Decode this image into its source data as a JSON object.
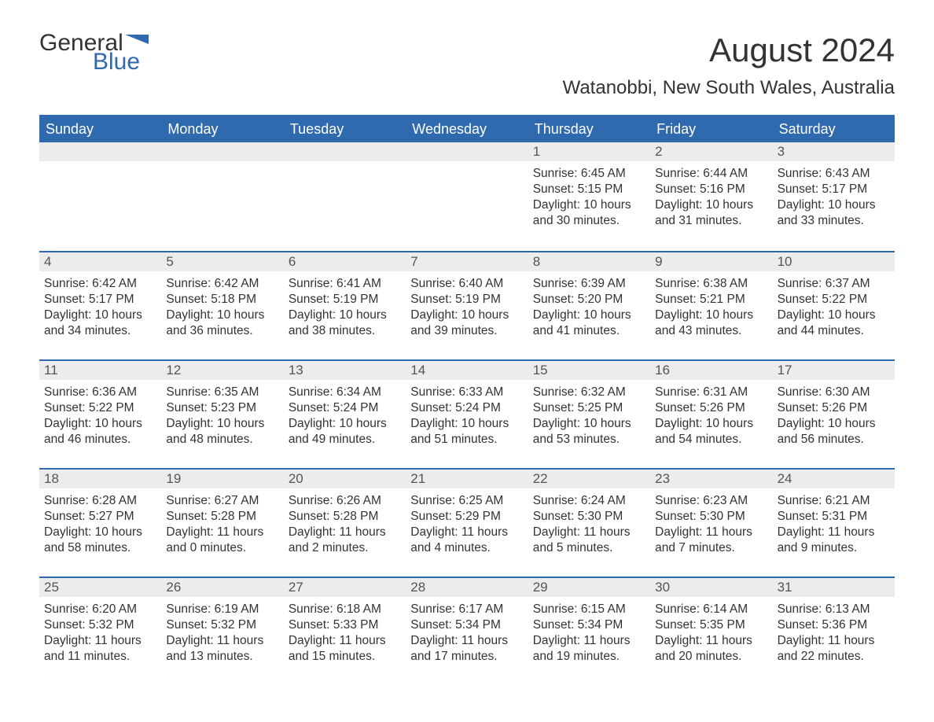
{
  "brand": {
    "part1": "General",
    "part2": "Blue",
    "color_primary": "#2f6aaf"
  },
  "title": "August 2024",
  "location": "Watanobbi, New South Wales, Australia",
  "weekdays": [
    "Sunday",
    "Monday",
    "Tuesday",
    "Wednesday",
    "Thursday",
    "Friday",
    "Saturday"
  ],
  "styling": {
    "header_bg": "#2f6aaf",
    "header_text": "#ffffff",
    "daynum_bg": "#ececec",
    "text_color": "#333333",
    "border_color": "#2f6aaf",
    "body_fontsize": 15.5,
    "header_fontsize": 18,
    "title_fontsize": 42,
    "location_fontsize": 24
  },
  "weeks": [
    [
      {
        "day": "",
        "lines": []
      },
      {
        "day": "",
        "lines": []
      },
      {
        "day": "",
        "lines": []
      },
      {
        "day": "",
        "lines": []
      },
      {
        "day": "1",
        "lines": [
          "Sunrise: 6:45 AM",
          "Sunset: 5:15 PM",
          "Daylight: 10 hours",
          "and 30 minutes."
        ]
      },
      {
        "day": "2",
        "lines": [
          "Sunrise: 6:44 AM",
          "Sunset: 5:16 PM",
          "Daylight: 10 hours",
          "and 31 minutes."
        ]
      },
      {
        "day": "3",
        "lines": [
          "Sunrise: 6:43 AM",
          "Sunset: 5:17 PM",
          "Daylight: 10 hours",
          "and 33 minutes."
        ]
      }
    ],
    [
      {
        "day": "4",
        "lines": [
          "Sunrise: 6:42 AM",
          "Sunset: 5:17 PM",
          "Daylight: 10 hours",
          "and 34 minutes."
        ]
      },
      {
        "day": "5",
        "lines": [
          "Sunrise: 6:42 AM",
          "Sunset: 5:18 PM",
          "Daylight: 10 hours",
          "and 36 minutes."
        ]
      },
      {
        "day": "6",
        "lines": [
          "Sunrise: 6:41 AM",
          "Sunset: 5:19 PM",
          "Daylight: 10 hours",
          "and 38 minutes."
        ]
      },
      {
        "day": "7",
        "lines": [
          "Sunrise: 6:40 AM",
          "Sunset: 5:19 PM",
          "Daylight: 10 hours",
          "and 39 minutes."
        ]
      },
      {
        "day": "8",
        "lines": [
          "Sunrise: 6:39 AM",
          "Sunset: 5:20 PM",
          "Daylight: 10 hours",
          "and 41 minutes."
        ]
      },
      {
        "day": "9",
        "lines": [
          "Sunrise: 6:38 AM",
          "Sunset: 5:21 PM",
          "Daylight: 10 hours",
          "and 43 minutes."
        ]
      },
      {
        "day": "10",
        "lines": [
          "Sunrise: 6:37 AM",
          "Sunset: 5:22 PM",
          "Daylight: 10 hours",
          "and 44 minutes."
        ]
      }
    ],
    [
      {
        "day": "11",
        "lines": [
          "Sunrise: 6:36 AM",
          "Sunset: 5:22 PM",
          "Daylight: 10 hours",
          "and 46 minutes."
        ]
      },
      {
        "day": "12",
        "lines": [
          "Sunrise: 6:35 AM",
          "Sunset: 5:23 PM",
          "Daylight: 10 hours",
          "and 48 minutes."
        ]
      },
      {
        "day": "13",
        "lines": [
          "Sunrise: 6:34 AM",
          "Sunset: 5:24 PM",
          "Daylight: 10 hours",
          "and 49 minutes."
        ]
      },
      {
        "day": "14",
        "lines": [
          "Sunrise: 6:33 AM",
          "Sunset: 5:24 PM",
          "Daylight: 10 hours",
          "and 51 minutes."
        ]
      },
      {
        "day": "15",
        "lines": [
          "Sunrise: 6:32 AM",
          "Sunset: 5:25 PM",
          "Daylight: 10 hours",
          "and 53 minutes."
        ]
      },
      {
        "day": "16",
        "lines": [
          "Sunrise: 6:31 AM",
          "Sunset: 5:26 PM",
          "Daylight: 10 hours",
          "and 54 minutes."
        ]
      },
      {
        "day": "17",
        "lines": [
          "Sunrise: 6:30 AM",
          "Sunset: 5:26 PM",
          "Daylight: 10 hours",
          "and 56 minutes."
        ]
      }
    ],
    [
      {
        "day": "18",
        "lines": [
          "Sunrise: 6:28 AM",
          "Sunset: 5:27 PM",
          "Daylight: 10 hours",
          "and 58 minutes."
        ]
      },
      {
        "day": "19",
        "lines": [
          "Sunrise: 6:27 AM",
          "Sunset: 5:28 PM",
          "Daylight: 11 hours",
          "and 0 minutes."
        ]
      },
      {
        "day": "20",
        "lines": [
          "Sunrise: 6:26 AM",
          "Sunset: 5:28 PM",
          "Daylight: 11 hours",
          "and 2 minutes."
        ]
      },
      {
        "day": "21",
        "lines": [
          "Sunrise: 6:25 AM",
          "Sunset: 5:29 PM",
          "Daylight: 11 hours",
          "and 4 minutes."
        ]
      },
      {
        "day": "22",
        "lines": [
          "Sunrise: 6:24 AM",
          "Sunset: 5:30 PM",
          "Daylight: 11 hours",
          "and 5 minutes."
        ]
      },
      {
        "day": "23",
        "lines": [
          "Sunrise: 6:23 AM",
          "Sunset: 5:30 PM",
          "Daylight: 11 hours",
          "and 7 minutes."
        ]
      },
      {
        "day": "24",
        "lines": [
          "Sunrise: 6:21 AM",
          "Sunset: 5:31 PM",
          "Daylight: 11 hours",
          "and 9 minutes."
        ]
      }
    ],
    [
      {
        "day": "25",
        "lines": [
          "Sunrise: 6:20 AM",
          "Sunset: 5:32 PM",
          "Daylight: 11 hours",
          "and 11 minutes."
        ]
      },
      {
        "day": "26",
        "lines": [
          "Sunrise: 6:19 AM",
          "Sunset: 5:32 PM",
          "Daylight: 11 hours",
          "and 13 minutes."
        ]
      },
      {
        "day": "27",
        "lines": [
          "Sunrise: 6:18 AM",
          "Sunset: 5:33 PM",
          "Daylight: 11 hours",
          "and 15 minutes."
        ]
      },
      {
        "day": "28",
        "lines": [
          "Sunrise: 6:17 AM",
          "Sunset: 5:34 PM",
          "Daylight: 11 hours",
          "and 17 minutes."
        ]
      },
      {
        "day": "29",
        "lines": [
          "Sunrise: 6:15 AM",
          "Sunset: 5:34 PM",
          "Daylight: 11 hours",
          "and 19 minutes."
        ]
      },
      {
        "day": "30",
        "lines": [
          "Sunrise: 6:14 AM",
          "Sunset: 5:35 PM",
          "Daylight: 11 hours",
          "and 20 minutes."
        ]
      },
      {
        "day": "31",
        "lines": [
          "Sunrise: 6:13 AM",
          "Sunset: 5:36 PM",
          "Daylight: 11 hours",
          "and 22 minutes."
        ]
      }
    ]
  ]
}
